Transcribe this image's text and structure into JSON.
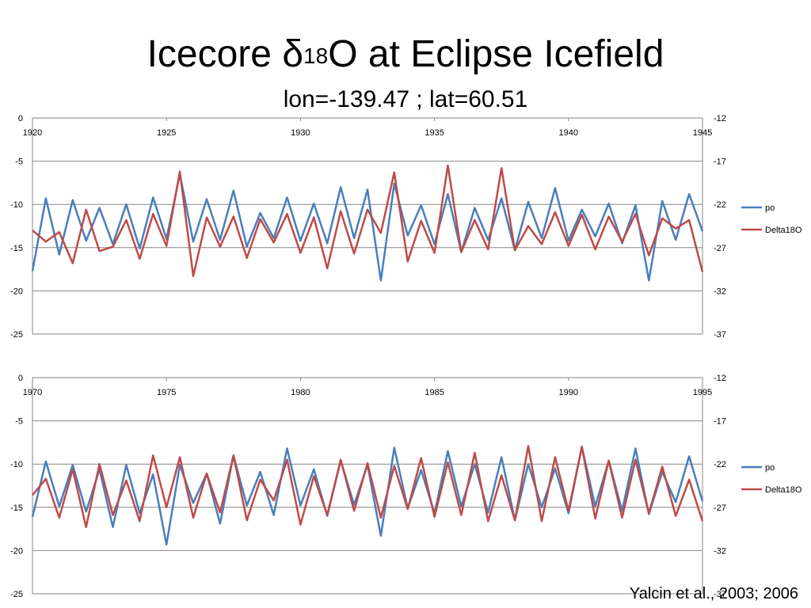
{
  "slide": {
    "title_main": "Icecore δ",
    "title_sup": "18",
    "title_end": "O at Eclipse Icefield",
    "subtitle": "lon=-139.47 ; lat=60.51",
    "citation": "Yalcin et al., 2003; 2006"
  },
  "colors": {
    "po": "#4a7ebb",
    "delta18o": "#be4b48",
    "axis": "#868686"
  },
  "chart_data": [
    {
      "type": "line",
      "title": "",
      "xlim": [
        1920,
        1945
      ],
      "x_ticks": [
        1920,
        1925,
        1930,
        1935,
        1940,
        1945
      ],
      "ylim_left": [
        -25,
        0
      ],
      "y_ticks_left": [
        0,
        -5,
        -10,
        -15,
        -20,
        -25
      ],
      "ylim_right": [
        -37,
        -12
      ],
      "y_ticks_right": [
        -12,
        -17,
        -22,
        -27,
        -32,
        -37
      ],
      "grid": true,
      "legend": "right",
      "series": [
        {
          "name": "po",
          "axis": "left",
          "color": "#4a7ebb",
          "x": [
            1920.0,
            1920.5,
            1921.0,
            1921.5,
            1922.0,
            1922.5,
            1923.0,
            1923.5,
            1924.0,
            1924.5,
            1925.0,
            1925.5,
            1926.0,
            1926.5,
            1927.0,
            1927.5,
            1928.0,
            1928.5,
            1929.0,
            1929.5,
            1930.0,
            1930.5,
            1931.0,
            1931.5,
            1932.0,
            1932.5,
            1933.0,
            1933.5,
            1934.0,
            1934.5,
            1935.0,
            1935.5,
            1936.0,
            1936.5,
            1937.0,
            1937.5,
            1938.0,
            1938.5,
            1939.0,
            1939.5,
            1940.0,
            1940.5,
            1941.0,
            1941.5,
            1942.0,
            1942.5,
            1943.0,
            1943.5,
            1944.0,
            1944.5,
            1945.0
          ],
          "y": [
            -17.7,
            -9.3,
            -15.8,
            -9.5,
            -14.2,
            -10.4,
            -14.6,
            -10.0,
            -15.1,
            -9.2,
            -14.0,
            -6.5,
            -14.3,
            -9.4,
            -14.1,
            -8.4,
            -14.9,
            -11.0,
            -13.9,
            -9.2,
            -14.2,
            -9.9,
            -14.5,
            -8.0,
            -13.9,
            -8.3,
            -18.8,
            -7.6,
            -13.6,
            -10.1,
            -14.6,
            -8.8,
            -15.5,
            -10.4,
            -14.1,
            -9.3,
            -15.3,
            -9.7,
            -13.9,
            -8.1,
            -14.2,
            -10.6,
            -13.7,
            -9.9,
            -14.5,
            -10.1,
            -18.8,
            -9.6,
            -14.1,
            -8.8,
            -13.1
          ]
        },
        {
          "name": "Delta18O",
          "axis": "right",
          "color": "#be4b48",
          "x": [
            1920.0,
            1920.5,
            1921.0,
            1921.5,
            1922.0,
            1922.5,
            1923.0,
            1923.5,
            1924.0,
            1924.5,
            1925.0,
            1925.5,
            1926.0,
            1926.5,
            1927.0,
            1927.5,
            1928.0,
            1928.5,
            1929.0,
            1929.5,
            1930.0,
            1930.5,
            1931.0,
            1931.5,
            1932.0,
            1932.5,
            1933.0,
            1933.5,
            1934.0,
            1934.5,
            1935.0,
            1935.5,
            1936.0,
            1936.5,
            1937.0,
            1937.5,
            1938.0,
            1938.5,
            1939.0,
            1939.5,
            1940.0,
            1940.5,
            1941.0,
            1941.5,
            1942.0,
            1942.5,
            1943.0,
            1943.5,
            1944.0,
            1944.5,
            1945.0
          ],
          "y": [
            -25.0,
            -26.3,
            -25.2,
            -28.8,
            -22.6,
            -27.4,
            -26.9,
            -23.8,
            -28.3,
            -23.1,
            -26.8,
            -18.2,
            -30.3,
            -23.5,
            -26.9,
            -23.4,
            -28.2,
            -23.7,
            -26.4,
            -23.1,
            -27.6,
            -23.5,
            -29.4,
            -22.8,
            -27.7,
            -22.6,
            -25.3,
            -18.3,
            -28.6,
            -23.9,
            -27.6,
            -17.5,
            -27.5,
            -23.8,
            -27.2,
            -17.8,
            -27.3,
            -24.5,
            -26.6,
            -22.9,
            -26.8,
            -23.2,
            -27.2,
            -23.4,
            -26.3,
            -23.1,
            -27.9,
            -23.6,
            -24.8,
            -23.8,
            -29.8
          ]
        }
      ]
    },
    {
      "type": "line",
      "title": "",
      "xlim": [
        1970,
        1995
      ],
      "x_ticks": [
        1970,
        1975,
        1980,
        1985,
        1990,
        1995
      ],
      "ylim_left": [
        -25,
        0
      ],
      "y_ticks_left": [
        0,
        -5,
        -10,
        -15,
        -20,
        -25
      ],
      "ylim_right": [
        -37,
        -12
      ],
      "y_ticks_right": [
        -12,
        -17,
        -22,
        -27,
        -32,
        -37
      ],
      "grid": true,
      "legend": "right",
      "series": [
        {
          "name": "po",
          "axis": "left",
          "color": "#4a7ebb",
          "x": [
            1970.0,
            1970.5,
            1971.0,
            1971.5,
            1972.0,
            1972.5,
            1973.0,
            1973.5,
            1974.0,
            1974.5,
            1975.0,
            1975.5,
            1976.0,
            1976.5,
            1977.0,
            1977.5,
            1978.0,
            1978.5,
            1979.0,
            1979.5,
            1980.0,
            1980.5,
            1981.0,
            1981.5,
            1982.0,
            1982.5,
            1983.0,
            1983.5,
            1984.0,
            1984.5,
            1985.0,
            1985.5,
            1986.0,
            1986.5,
            1987.0,
            1987.5,
            1988.0,
            1988.5,
            1989.0,
            1989.5,
            1990.0,
            1990.5,
            1991.0,
            1991.5,
            1992.0,
            1992.5,
            1993.0,
            1993.5,
            1994.0,
            1994.5,
            1995.0
          ],
          "y": [
            -16.1,
            -9.7,
            -14.9,
            -10.1,
            -15.5,
            -10.6,
            -17.3,
            -10.1,
            -15.7,
            -11.2,
            -19.3,
            -10.1,
            -14.5,
            -11.1,
            -16.9,
            -9.0,
            -14.8,
            -10.9,
            -15.9,
            -8.2,
            -14.8,
            -10.6,
            -16.0,
            -9.6,
            -14.7,
            -10.1,
            -18.3,
            -8.1,
            -15.1,
            -10.7,
            -15.7,
            -8.5,
            -14.9,
            -10.0,
            -15.6,
            -9.2,
            -16.5,
            -10.0,
            -15.0,
            -10.5,
            -15.7,
            -8.0,
            -14.9,
            -9.6,
            -15.4,
            -8.2,
            -15.8,
            -10.9,
            -14.4,
            -9.1,
            -14.3
          ]
        },
        {
          "name": "Delta18O",
          "axis": "right",
          "color": "#be4b48",
          "x": [
            1970.0,
            1970.5,
            1971.0,
            1971.5,
            1972.0,
            1972.5,
            1973.0,
            1973.5,
            1974.0,
            1974.5,
            1975.0,
            1975.5,
            1976.0,
            1976.5,
            1977.0,
            1977.5,
            1978.0,
            1978.5,
            1979.0,
            1979.5,
            1980.0,
            1980.5,
            1981.0,
            1981.5,
            1982.0,
            1982.5,
            1983.0,
            1983.5,
            1984.0,
            1984.5,
            1985.0,
            1985.5,
            1986.0,
            1986.5,
            1987.0,
            1987.5,
            1988.0,
            1988.5,
            1989.0,
            1989.5,
            1990.0,
            1990.5,
            1991.0,
            1991.5,
            1992.0,
            1992.5,
            1993.0,
            1993.5,
            1994.0,
            1994.5,
            1995.0
          ],
          "y": [
            -25.6,
            -23.7,
            -28.2,
            -22.6,
            -29.3,
            -22.0,
            -27.9,
            -23.9,
            -28.6,
            -21.0,
            -27.0,
            -21.2,
            -28.2,
            -23.1,
            -27.6,
            -21.0,
            -28.5,
            -23.8,
            -26.2,
            -21.5,
            -29.0,
            -23.4,
            -27.9,
            -21.5,
            -27.4,
            -21.9,
            -28.2,
            -22.2,
            -27.2,
            -21.3,
            -28.1,
            -21.8,
            -27.9,
            -20.7,
            -28.6,
            -23.3,
            -28.5,
            -19.9,
            -28.6,
            -21.2,
            -27.4,
            -20.0,
            -28.3,
            -21.6,
            -28.2,
            -21.5,
            -27.7,
            -22.3,
            -28.0,
            -23.8,
            -28.6
          ]
        }
      ]
    }
  ]
}
